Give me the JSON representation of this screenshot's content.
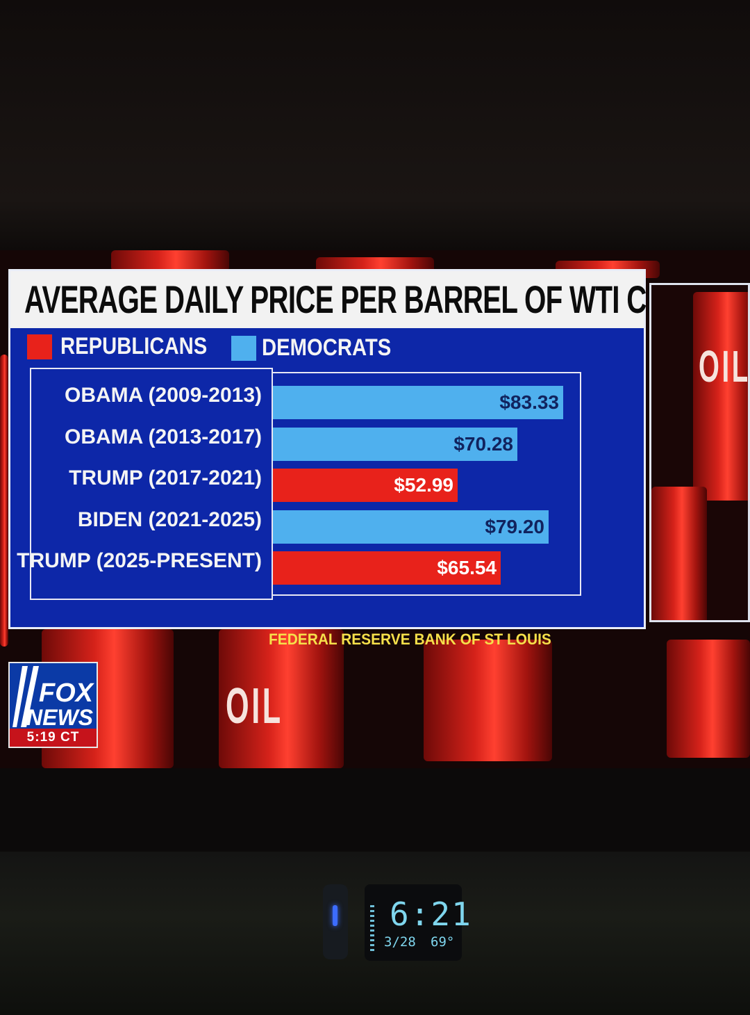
{
  "chart_data": {
    "type": "bar",
    "orientation": "horizontal",
    "title": "AVERAGE DAILY PRICE PER BARREL OF WTI CRUDE OIL",
    "legend": [
      {
        "label": "REPUBLICANS",
        "color": "#e8221b"
      },
      {
        "label": "DEMOCRATS",
        "color": "#4fb0ee"
      }
    ],
    "categories": [
      "OBAMA (2009-2013)",
      "OBAMA (2013-2017)",
      "TRUMP (2017-2021)",
      "BIDEN (2021-2025)",
      "TRUMP (2025-PRESENT)"
    ],
    "values": [
      83.33,
      70.28,
      52.99,
      79.2,
      65.54
    ],
    "value_labels": [
      "$83.33",
      "$70.28",
      "$52.99",
      "$79.20",
      "$65.54"
    ],
    "party": [
      "DEMOCRATS",
      "DEMOCRATS",
      "REPUBLICANS",
      "DEMOCRATS",
      "REPUBLICANS"
    ],
    "xlim": [
      0,
      89
    ],
    "source": "FEDERAL RESERVE BANK OF ST LOUIS"
  },
  "colors": {
    "panel_bg": "#0d27a8",
    "republican": "#e8221b",
    "democrat": "#4fb0ee",
    "source_text": "#f6e04a"
  },
  "network": {
    "logo_line1": "FOX",
    "logo_line2": "NEWS",
    "clock": "5:19 CT"
  },
  "side_panel": {
    "barrel_text": "OIL"
  },
  "room_clock": {
    "time": "6:21",
    "date": "3/28",
    "temp": "69°"
  }
}
